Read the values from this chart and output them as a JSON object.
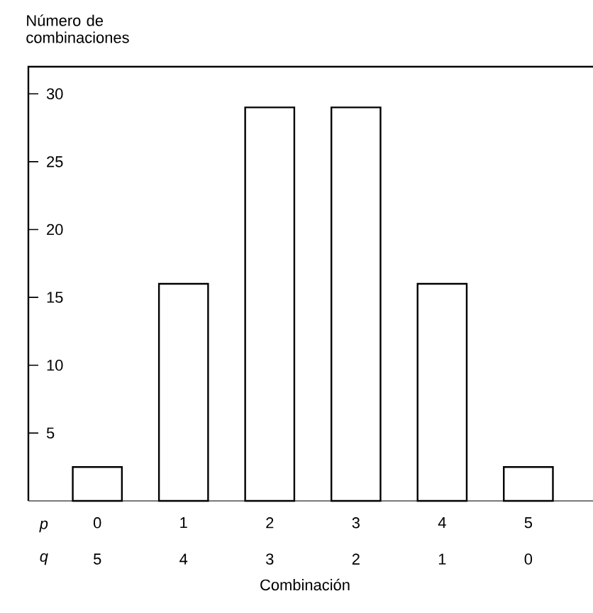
{
  "chart_data": {
    "type": "bar",
    "ylabel": "Número de combinaciones",
    "xlabel": "Combinación",
    "categories": [
      "0",
      "1",
      "2",
      "3",
      "4",
      "5"
    ],
    "values": [
      2.5,
      16,
      29,
      29,
      16,
      2.5
    ],
    "color": "#ffffff",
    "ylim": [
      0,
      32
    ],
    "yticks": [
      5,
      10,
      15,
      20,
      25,
      30
    ],
    "grid": false,
    "annotations": [
      "p",
      "q",
      "5",
      "4",
      "3",
      "2",
      "1",
      "0"
    ]
  }
}
